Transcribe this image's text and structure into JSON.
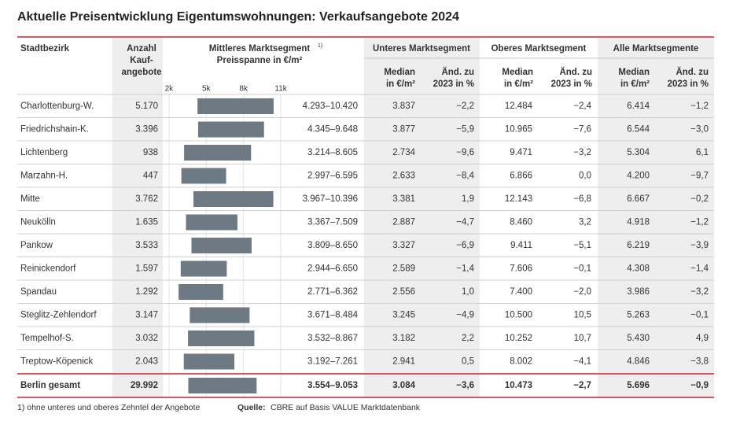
{
  "title": "Aktuelle Preisentwicklung Eigentumswohnungen: Verkaufsangebote 2024",
  "header": {
    "district": "Stadtbezirk",
    "count": [
      "Anzahl",
      "Kauf-",
      "angebote"
    ],
    "middle": [
      "Mittleres Marktsegment",
      "Preisspanne in €/m²"
    ],
    "middle_note": "1)",
    "lower": "Unteres Marktsegment",
    "upper": "Oberes Marktsegment",
    "all": "Alle Marktsegmente",
    "median": [
      "Median",
      "in €/m²"
    ],
    "change": [
      "Änd. zu",
      "2023 in %"
    ]
  },
  "price_scale": {
    "xlim": [
      1500,
      11500
    ],
    "xticks": [
      {
        "value": 2000,
        "label": "2k"
      },
      {
        "value": 5000,
        "label": "5k"
      },
      {
        "value": 8000,
        "label": "8k"
      },
      {
        "value": 11000,
        "label": "11k"
      }
    ]
  },
  "rows": [
    {
      "district": "Charlottenburg-W.",
      "count": "5.170",
      "range_low": 4293,
      "range_high": 10420,
      "range_label": "4.293–10.420",
      "lower_median": "3.837",
      "lower_change": "−2,2",
      "upper_median": "12.484",
      "upper_change": "−2,4",
      "all_median": "6.414",
      "all_change": "−1,2"
    },
    {
      "district": "Friedrichshain-K.",
      "count": "3.396",
      "range_low": 4345,
      "range_high": 9648,
      "range_label": "4.345–9.648",
      "lower_median": "3.877",
      "lower_change": "−5,9",
      "upper_median": "10.965",
      "upper_change": "−7,6",
      "all_median": "6.544",
      "all_change": "−3,0"
    },
    {
      "district": "Lichtenberg",
      "count": "938",
      "range_low": 3214,
      "range_high": 8605,
      "range_label": "3.214–8.605",
      "lower_median": "2.734",
      "lower_change": "−9,6",
      "upper_median": "9.471",
      "upper_change": "−3,2",
      "all_median": "5.304",
      "all_change": "6,1"
    },
    {
      "district": "Marzahn-H.",
      "count": "447",
      "range_low": 2997,
      "range_high": 6595,
      "range_label": "2.997–6.595",
      "lower_median": "2.633",
      "lower_change": "−8,4",
      "upper_median": "6.866",
      "upper_change": "0,0",
      "all_median": "4.200",
      "all_change": "−9,7"
    },
    {
      "district": "Mitte",
      "count": "3.762",
      "range_low": 3967,
      "range_high": 10396,
      "range_label": "3.967–10.396",
      "lower_median": "3.381",
      "lower_change": "1,9",
      "upper_median": "12.143",
      "upper_change": "−6,8",
      "all_median": "6.667",
      "all_change": "−0,2"
    },
    {
      "district": "Neukölln",
      "count": "1.635",
      "range_low": 3367,
      "range_high": 7509,
      "range_label": "3.367–7.509",
      "lower_median": "2.887",
      "lower_change": "−4,7",
      "upper_median": "8.460",
      "upper_change": "3,2",
      "all_median": "4.918",
      "all_change": "−1,2"
    },
    {
      "district": "Pankow",
      "count": "3.533",
      "range_low": 3809,
      "range_high": 8650,
      "range_label": "3.809–8.650",
      "lower_median": "3.327",
      "lower_change": "−6,9",
      "upper_median": "9.411",
      "upper_change": "−5,1",
      "all_median": "6.219",
      "all_change": "−3,9"
    },
    {
      "district": "Reinickendorf",
      "count": "1.597",
      "range_low": 2944,
      "range_high": 6650,
      "range_label": "2.944–6.650",
      "lower_median": "2.589",
      "lower_change": "−1,4",
      "upper_median": "7.606",
      "upper_change": "−0,1",
      "all_median": "4.308",
      "all_change": "−1,4"
    },
    {
      "district": "Spandau",
      "count": "1.292",
      "range_low": 2771,
      "range_high": 6362,
      "range_label": "2.771–6.362",
      "lower_median": "2.556",
      "lower_change": "1,0",
      "upper_median": "7.400",
      "upper_change": "−2,0",
      "all_median": "3.986",
      "all_change": "−3,2"
    },
    {
      "district": "Steglitz-Zehlendorf",
      "count": "3.147",
      "range_low": 3671,
      "range_high": 8484,
      "range_label": "3.671–8.484",
      "lower_median": "3.245",
      "lower_change": "−4,9",
      "upper_median": "10.500",
      "upper_change": "10,5",
      "all_median": "5.263",
      "all_change": "−0,1"
    },
    {
      "district": "Tempelhof-S.",
      "count": "3.032",
      "range_low": 3532,
      "range_high": 8867,
      "range_label": "3.532–8.867",
      "lower_median": "3.182",
      "lower_change": "2,2",
      "upper_median": "10.252",
      "upper_change": "10,7",
      "all_median": "5.430",
      "all_change": "4,9"
    },
    {
      "district": "Treptow-Köpenick",
      "count": "2.043",
      "range_low": 3192,
      "range_high": 7261,
      "range_label": "3.192–7.261",
      "lower_median": "2.941",
      "lower_change": "0,5",
      "upper_median": "8.002",
      "upper_change": "−4,1",
      "all_median": "4.846",
      "all_change": "−3,8"
    }
  ],
  "total": {
    "district": "Berlin gesamt",
    "count": "29.992",
    "range_low": 3554,
    "range_high": 9053,
    "range_label": "3.554–9.053",
    "lower_median": "3.084",
    "lower_change": "−3,6",
    "upper_median": "10.473",
    "upper_change": "−2,7",
    "all_median": "5.696",
    "all_change": "−0,9"
  },
  "footnote": "1) ohne unteres und oberes Zehntel der Angebote",
  "source_label": "Quelle:",
  "source": "CBRE auf Basis VALUE Marktdatenbank"
}
